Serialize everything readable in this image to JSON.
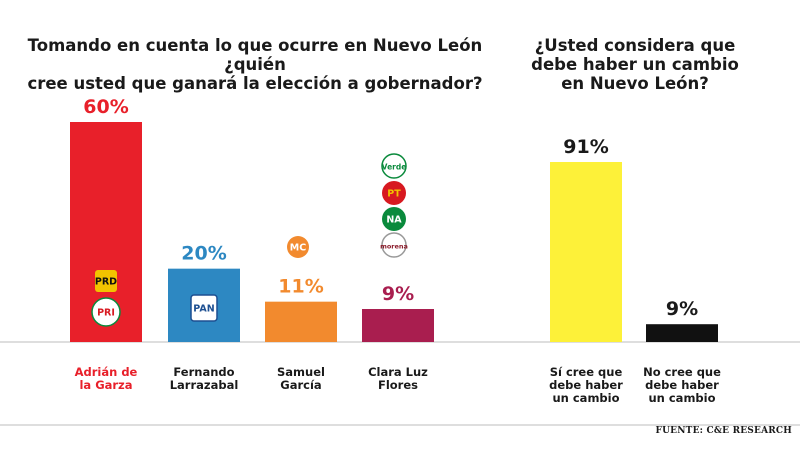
{
  "chart_data": [
    {
      "type": "bar",
      "title": "Tomando en cuenta lo que ocurre en Nuevo León ¿quién\ncree usted que ganará la elección a gobernador?",
      "categories": [
        "Adrián de\nla Garza",
        "Fernando\nLarrazabal",
        "Samuel\nGarcía",
        "Clara Luz\nFlores"
      ],
      "values": [
        60,
        20,
        11,
        9
      ],
      "value_labels": [
        "60%",
        "20%",
        "11%",
        "9%"
      ],
      "colors": [
        "#e8202a",
        "#2d88c2",
        "#f28a2e",
        "#a91e4f"
      ],
      "value_label_colors": [
        "#e8202a",
        "#2d88c2",
        "#f28a2e",
        "#a91e4f"
      ],
      "category_label_colors": [
        "#e8202a",
        "#1a1a1a",
        "#1a1a1a",
        "#1a1a1a"
      ],
      "party_logos": [
        [
          "PRD",
          "PRI"
        ],
        [
          "PAN"
        ],
        [
          "MC"
        ],
        [
          "PVEM",
          "PT",
          "NA",
          "morena"
        ]
      ],
      "ylim": [
        0,
        60
      ]
    },
    {
      "type": "bar",
      "title": "¿Usted considera que\ndebe haber un cambio\nen Nuevo León?",
      "categories": [
        "Sí cree que\ndebe haber\nun cambio",
        "No cree que\ndebe haber\nun cambio"
      ],
      "values": [
        91,
        9
      ],
      "value_labels": [
        "91%",
        "9%"
      ],
      "colors": [
        "#fdf139",
        "#111111"
      ],
      "value_label_colors": [
        "#1a1a1a",
        "#1a1a1a"
      ],
      "category_label_colors": [
        "#1a1a1a",
        "#1a1a1a"
      ],
      "ylim": [
        0,
        91
      ]
    }
  ],
  "source": "FUENTE: C&E RESEARCH",
  "logo_text": {
    "PRD": "PRD",
    "PRI": "PRI",
    "PAN": "PAN",
    "MC": "MC",
    "PVEM": "Verde",
    "PT": "PT",
    "NA": "NA",
    "morena": "morena"
  }
}
